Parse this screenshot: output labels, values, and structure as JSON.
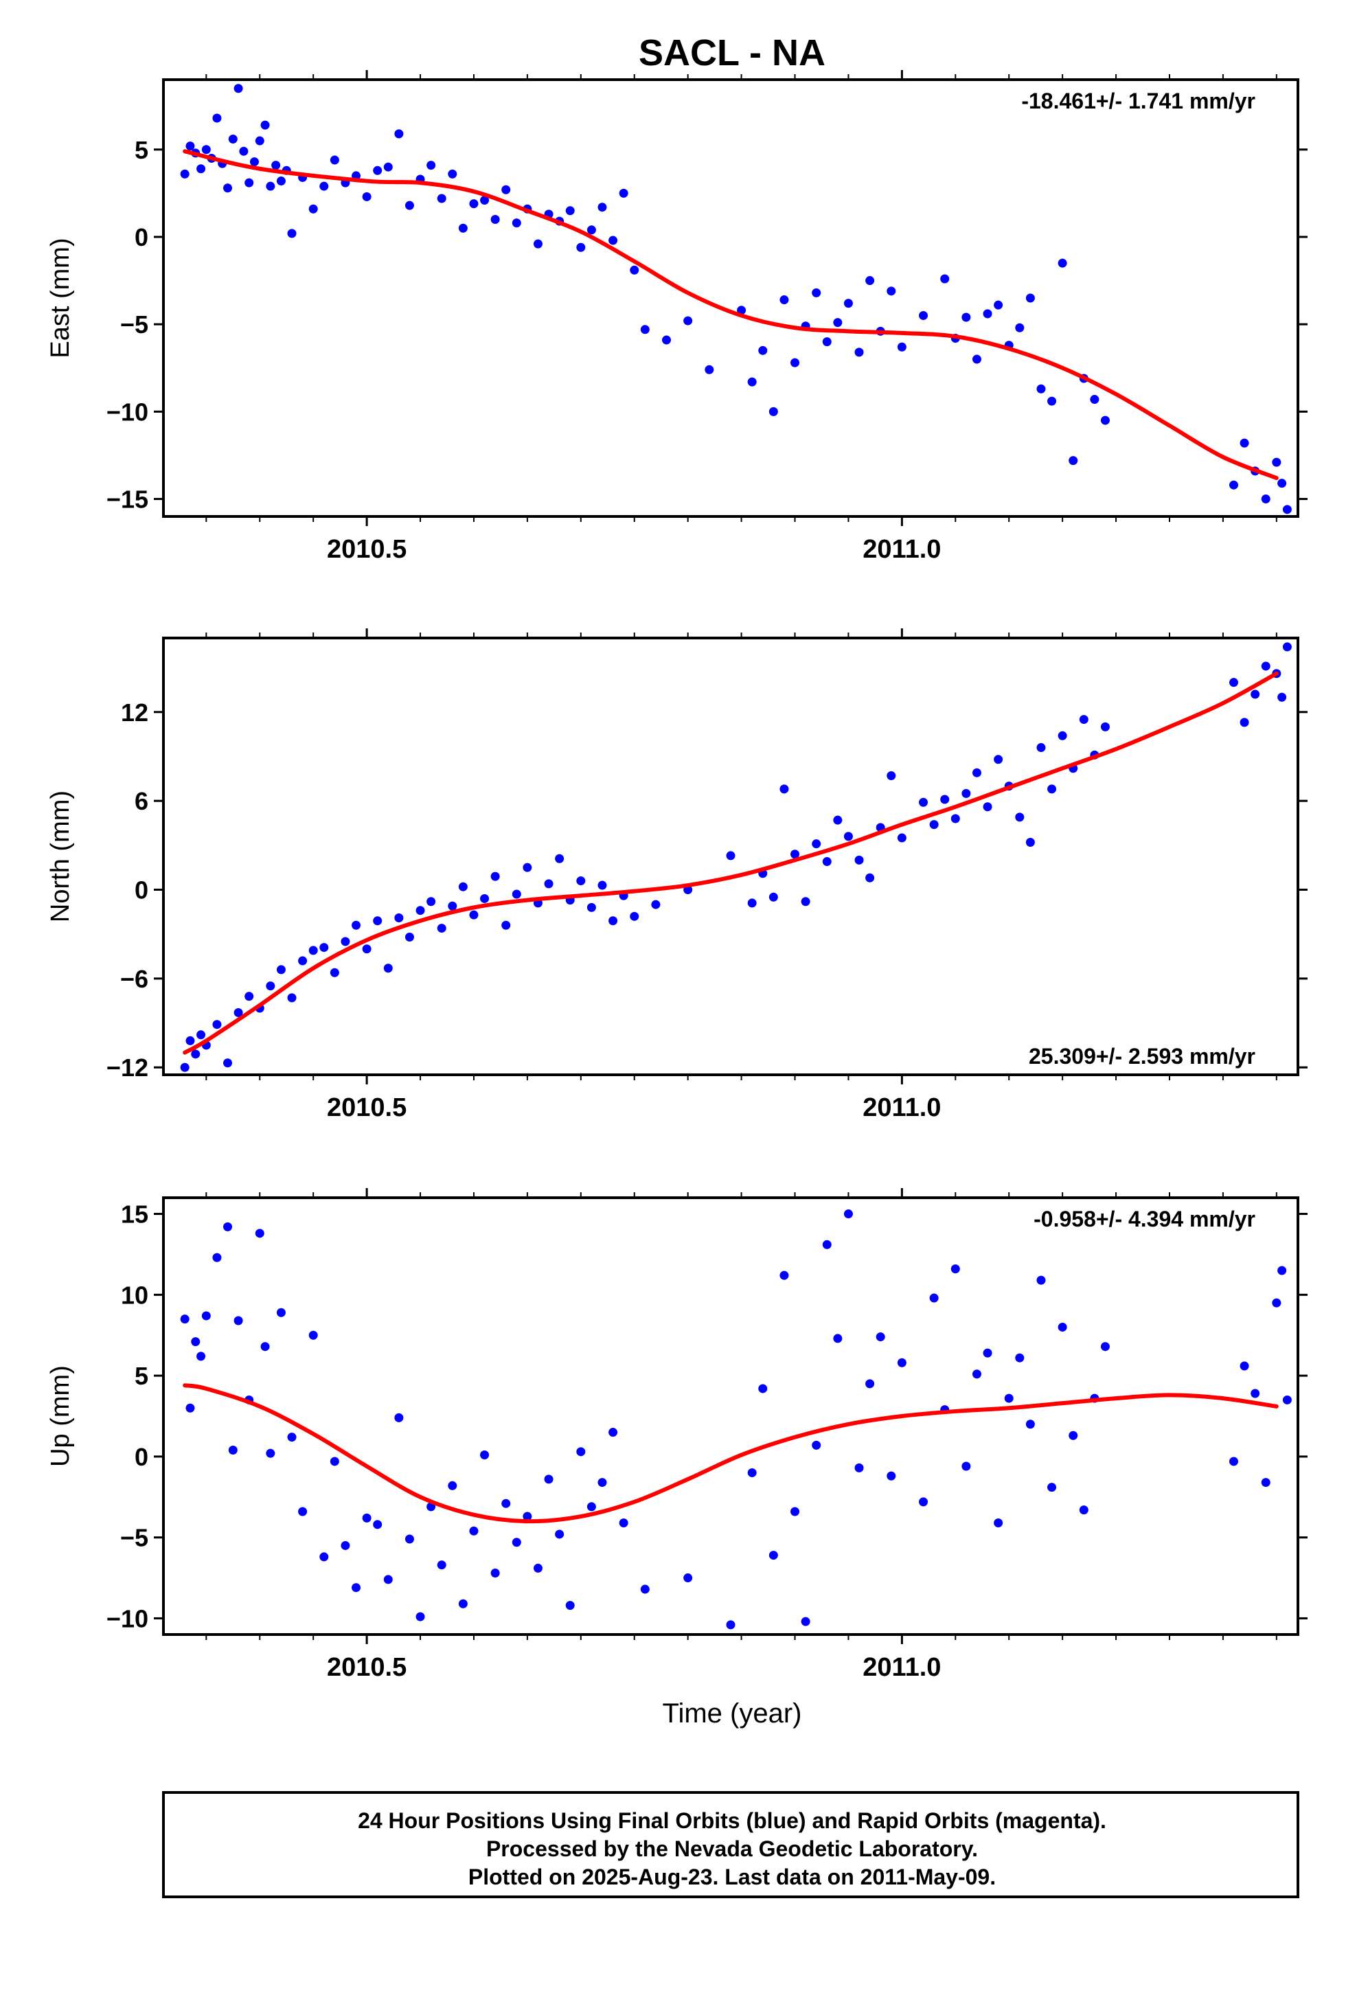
{
  "title": "SACL - NA",
  "xlabel": "Time (year)",
  "footer": {
    "line1": "24 Hour Positions Using Final Orbits (blue) and Rapid Orbits (magenta).",
    "line2": "Processed by the Nevada Geodetic Laboratory.",
    "line3": "Plotted on 2025-Aug-23. Last data on 2011-May-09."
  },
  "colors": {
    "points": "#0000ff",
    "fit": "#ff0000",
    "frame": "#000000"
  },
  "chart_data": [
    {
      "type": "scatter",
      "ylabel": "East (mm)",
      "rate_text": "-18.461+/- 1.741 mm/yr",
      "rate_position": "top-right",
      "xlim": [
        2010.31,
        2011.37
      ],
      "ylim": [
        -16,
        9
      ],
      "yticks": [
        5,
        0,
        -5,
        -10,
        -15
      ],
      "ytick_labels": [
        "5",
        "0",
        "−5",
        "−10",
        "−15"
      ],
      "xticks": [
        2010.5,
        2011.0
      ],
      "xtick_labels": [
        "2010.5",
        "2011.0"
      ],
      "points": {
        "x": [
          2010.33,
          2010.335,
          2010.34,
          2010.345,
          2010.35,
          2010.355,
          2010.36,
          2010.365,
          2010.37,
          2010.375,
          2010.38,
          2010.385,
          2010.39,
          2010.395,
          2010.4,
          2010.405,
          2010.41,
          2010.415,
          2010.42,
          2010.425,
          2010.43,
          2010.44,
          2010.45,
          2010.46,
          2010.47,
          2010.48,
          2010.49,
          2010.5,
          2010.51,
          2010.52,
          2010.53,
          2010.54,
          2010.55,
          2010.56,
          2010.57,
          2010.58,
          2010.59,
          2010.6,
          2010.61,
          2010.62,
          2010.63,
          2010.64,
          2010.65,
          2010.66,
          2010.67,
          2010.68,
          2010.69,
          2010.7,
          2010.71,
          2010.72,
          2010.73,
          2010.74,
          2010.75,
          2010.76,
          2010.78,
          2010.8,
          2010.82,
          2010.85,
          2010.86,
          2010.87,
          2010.88,
          2010.89,
          2010.9,
          2010.91,
          2010.92,
          2010.93,
          2010.94,
          2010.95,
          2010.96,
          2010.97,
          2010.98,
          2010.99,
          2011.0,
          2011.02,
          2011.04,
          2011.05,
          2011.06,
          2011.07,
          2011.08,
          2011.09,
          2011.1,
          2011.11,
          2011.12,
          2011.13,
          2011.14,
          2011.15,
          2011.16,
          2011.17,
          2011.18,
          2011.19,
          2011.31,
          2011.32,
          2011.33,
          2011.34,
          2011.35,
          2011.355,
          2011.36
        ],
        "y": [
          3.6,
          5.2,
          4.8,
          3.9,
          5.0,
          4.5,
          6.8,
          4.2,
          2.8,
          5.6,
          8.5,
          4.9,
          3.1,
          4.3,
          5.5,
          6.4,
          2.9,
          4.1,
          3.2,
          3.8,
          0.2,
          3.4,
          1.6,
          2.9,
          4.4,
          3.1,
          3.5,
          2.3,
          3.8,
          4.0,
          5.9,
          1.8,
          3.3,
          4.1,
          2.2,
          3.6,
          0.5,
          1.9,
          2.1,
          1.0,
          2.7,
          0.8,
          1.6,
          -0.4,
          1.3,
          0.9,
          1.5,
          -0.6,
          0.4,
          1.7,
          -0.2,
          2.5,
          -1.9,
          -5.3,
          -5.9,
          -4.8,
          -7.6,
          -4.2,
          -8.3,
          -6.5,
          -10.0,
          -3.6,
          -7.2,
          -5.1,
          -3.2,
          -6.0,
          -4.9,
          -3.8,
          -6.6,
          -2.5,
          -5.4,
          -3.1,
          -6.3,
          -4.5,
          -2.4,
          -5.8,
          -4.6,
          -7.0,
          -4.4,
          -3.9,
          -6.2,
          -5.2,
          -3.5,
          -8.7,
          -9.4,
          -1.5,
          -12.8,
          -8.1,
          -9.3,
          -10.5,
          -14.2,
          -11.8,
          -13.4,
          -15.0,
          -12.9,
          -14.1,
          -15.6
        ]
      },
      "fit": {
        "x": [
          2010.33,
          2010.4,
          2010.5,
          2010.55,
          2010.6,
          2010.65,
          2010.7,
          2010.75,
          2010.8,
          2010.85,
          2010.9,
          2010.95,
          2011.0,
          2011.05,
          2011.1,
          2011.15,
          2011.2,
          2011.25,
          2011.3,
          2011.35
        ],
        "y": [
          4.9,
          3.9,
          3.2,
          3.1,
          2.6,
          1.5,
          0.3,
          -1.4,
          -3.2,
          -4.5,
          -5.2,
          -5.4,
          -5.5,
          -5.7,
          -6.4,
          -7.5,
          -9.0,
          -10.8,
          -12.6,
          -13.8
        ]
      }
    },
    {
      "type": "scatter",
      "ylabel": "North (mm)",
      "rate_text": "25.309+/- 2.593 mm/yr",
      "rate_position": "bottom-right",
      "xlim": [
        2010.31,
        2011.37
      ],
      "ylim": [
        -12.5,
        17
      ],
      "yticks": [
        12,
        6,
        0,
        -6,
        -12
      ],
      "ytick_labels": [
        "12",
        "6",
        "0",
        "−6",
        "−12"
      ],
      "xticks": [
        2010.5,
        2011.0
      ],
      "xtick_labels": [
        "2010.5",
        "2011.0"
      ],
      "points": {
        "x": [
          2010.33,
          2010.335,
          2010.34,
          2010.345,
          2010.35,
          2010.36,
          2010.37,
          2010.38,
          2010.39,
          2010.4,
          2010.41,
          2010.42,
          2010.43,
          2010.44,
          2010.45,
          2010.46,
          2010.47,
          2010.48,
          2010.49,
          2010.5,
          2010.51,
          2010.52,
          2010.53,
          2010.54,
          2010.55,
          2010.56,
          2010.57,
          2010.58,
          2010.59,
          2010.6,
          2010.61,
          2010.62,
          2010.63,
          2010.64,
          2010.65,
          2010.66,
          2010.67,
          2010.68,
          2010.69,
          2010.7,
          2010.71,
          2010.72,
          2010.73,
          2010.74,
          2010.75,
          2010.77,
          2010.8,
          2010.84,
          2010.86,
          2010.87,
          2010.88,
          2010.89,
          2010.9,
          2010.91,
          2010.92,
          2010.93,
          2010.94,
          2010.95,
          2010.96,
          2010.97,
          2010.98,
          2010.99,
          2011.0,
          2011.02,
          2011.03,
          2011.04,
          2011.05,
          2011.06,
          2011.07,
          2011.08,
          2011.09,
          2011.1,
          2011.11,
          2011.12,
          2011.13,
          2011.14,
          2011.15,
          2011.16,
          2011.17,
          2011.18,
          2011.19,
          2011.31,
          2011.32,
          2011.33,
          2011.34,
          2011.35,
          2011.355,
          2011.36
        ],
        "y": [
          -12.0,
          -10.2,
          -11.1,
          -9.8,
          -10.5,
          -9.1,
          -11.7,
          -8.3,
          -7.2,
          -8.0,
          -6.5,
          -5.4,
          -7.3,
          -4.8,
          -4.1,
          -3.9,
          -5.6,
          -3.5,
          -2.4,
          -4.0,
          -2.1,
          -5.3,
          -1.9,
          -3.2,
          -1.4,
          -0.8,
          -2.6,
          -1.1,
          0.2,
          -1.7,
          -0.6,
          0.9,
          -2.4,
          -0.3,
          1.5,
          -0.9,
          0.4,
          2.1,
          -0.7,
          0.6,
          -1.2,
          0.3,
          -2.1,
          -0.4,
          -1.8,
          -1.0,
          0.0,
          2.3,
          -0.9,
          1.1,
          -0.5,
          6.8,
          2.4,
          -0.8,
          3.1,
          1.9,
          4.7,
          3.6,
          2.0,
          0.8,
          4.2,
          7.7,
          3.5,
          5.9,
          4.4,
          6.1,
          4.8,
          6.5,
          7.9,
          5.6,
          8.8,
          7.0,
          4.9,
          3.2,
          9.6,
          6.8,
          10.4,
          8.2,
          11.5,
          9.1,
          11.0,
          14.0,
          11.3,
          13.2,
          15.1,
          14.6,
          13.0,
          16.4
        ]
      },
      "fit": {
        "x": [
          2010.33,
          2010.35,
          2010.4,
          2010.45,
          2010.5,
          2010.55,
          2010.6,
          2010.65,
          2010.7,
          2010.75,
          2010.8,
          2010.85,
          2010.9,
          2010.95,
          2011.0,
          2011.05,
          2011.1,
          2011.15,
          2011.2,
          2011.25,
          2011.3,
          2011.35
        ],
        "y": [
          -11.0,
          -10.2,
          -7.8,
          -5.3,
          -3.4,
          -2.1,
          -1.2,
          -0.7,
          -0.4,
          -0.1,
          0.3,
          1.0,
          2.0,
          3.1,
          4.4,
          5.6,
          6.9,
          8.2,
          9.5,
          11.0,
          12.6,
          14.6
        ]
      }
    },
    {
      "type": "scatter",
      "ylabel": "Up (mm)",
      "rate_text": "-0.958+/- 4.394 mm/yr",
      "rate_position": "top-right",
      "xlim": [
        2010.31,
        2011.37
      ],
      "ylim": [
        -11,
        16
      ],
      "yticks": [
        15,
        10,
        5,
        0,
        -5,
        -10
      ],
      "ytick_labels": [
        "15",
        "10",
        "5",
        "0",
        "−5",
        "−10"
      ],
      "xticks": [
        2010.5,
        2011.0
      ],
      "xtick_labels": [
        "2010.5",
        "2011.0"
      ],
      "points": {
        "x": [
          2010.33,
          2010.335,
          2010.34,
          2010.345,
          2010.35,
          2010.36,
          2010.37,
          2010.375,
          2010.38,
          2010.39,
          2010.4,
          2010.405,
          2010.41,
          2010.42,
          2010.43,
          2010.44,
          2010.45,
          2010.46,
          2010.47,
          2010.48,
          2010.49,
          2010.5,
          2010.51,
          2010.52,
          2010.53,
          2010.54,
          2010.55,
          2010.56,
          2010.57,
          2010.58,
          2010.59,
          2010.6,
          2010.61,
          2010.62,
          2010.63,
          2010.64,
          2010.65,
          2010.66,
          2010.67,
          2010.68,
          2010.69,
          2010.7,
          2010.71,
          2010.72,
          2010.73,
          2010.74,
          2010.76,
          2010.8,
          2010.84,
          2010.86,
          2010.87,
          2010.88,
          2010.89,
          2010.9,
          2010.91,
          2010.92,
          2010.93,
          2010.94,
          2010.95,
          2010.96,
          2010.97,
          2010.98,
          2010.99,
          2011.0,
          2011.02,
          2011.03,
          2011.04,
          2011.05,
          2011.06,
          2011.07,
          2011.08,
          2011.09,
          2011.1,
          2011.11,
          2011.12,
          2011.13,
          2011.14,
          2011.15,
          2011.16,
          2011.17,
          2011.18,
          2011.19,
          2011.31,
          2011.32,
          2011.33,
          2011.34,
          2011.35,
          2011.355,
          2011.36
        ],
        "y": [
          8.5,
          3.0,
          7.1,
          6.2,
          8.7,
          12.3,
          14.2,
          0.4,
          8.4,
          3.5,
          13.8,
          6.8,
          0.2,
          8.9,
          1.2,
          -3.4,
          7.5,
          -6.2,
          -0.3,
          -5.5,
          -8.1,
          -3.8,
          -4.2,
          -7.6,
          2.4,
          -5.1,
          -9.9,
          -3.1,
          -6.7,
          -1.8,
          -9.1,
          -4.6,
          0.1,
          -7.2,
          -2.9,
          -5.3,
          -3.7,
          -6.9,
          -1.4,
          -4.8,
          -9.2,
          0.3,
          -3.1,
          -1.6,
          1.5,
          -4.1,
          -8.2,
          -7.5,
          -10.4,
          -1.0,
          4.2,
          -6.1,
          11.2,
          -3.4,
          -10.2,
          0.7,
          13.1,
          7.3,
          15.0,
          -0.7,
          4.5,
          7.4,
          -1.2,
          5.8,
          -2.8,
          9.8,
          2.9,
          11.6,
          -0.6,
          5.1,
          6.4,
          -4.1,
          3.6,
          6.1,
          2.0,
          10.9,
          -1.9,
          8.0,
          1.3,
          -3.3,
          3.6,
          6.8,
          -0.3,
          5.6,
          3.9,
          -1.6,
          9.5,
          11.5,
          3.5
        ]
      },
      "fit": {
        "x": [
          2010.33,
          2010.35,
          2010.4,
          2010.45,
          2010.5,
          2010.55,
          2010.6,
          2010.65,
          2010.7,
          2010.75,
          2010.8,
          2010.85,
          2010.9,
          2010.95,
          2011.0,
          2011.05,
          2011.1,
          2011.15,
          2011.2,
          2011.25,
          2011.3,
          2011.35
        ],
        "y": [
          4.4,
          4.2,
          3.1,
          1.4,
          -0.6,
          -2.5,
          -3.6,
          -4.0,
          -3.7,
          -2.8,
          -1.4,
          0.1,
          1.2,
          2.0,
          2.5,
          2.8,
          3.0,
          3.3,
          3.6,
          3.8,
          3.6,
          3.1
        ]
      }
    }
  ]
}
